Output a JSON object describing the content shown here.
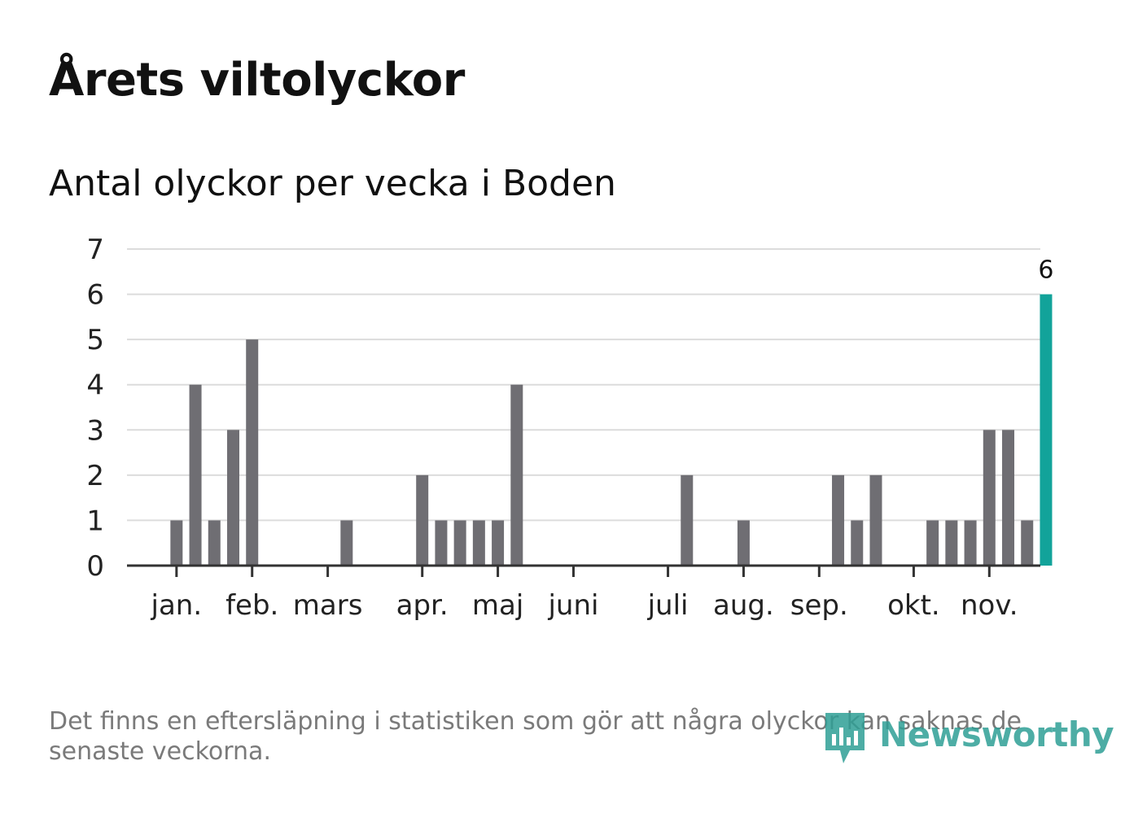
{
  "title": "Årets viltolyckor",
  "subtitle": "Antal olyckor per vecka i Boden",
  "footnote": "Det finns en eftersläpning i statistiken som gör att några olyckor kan saknas de senaste veckorna.",
  "logo_text": "Newsworthy",
  "colors": {
    "bar": "#6f6e73",
    "highlight": "#12a39a",
    "grid": "#dcdcdc",
    "axis": "#333333",
    "logo": "#2f9f96"
  },
  "chart_data": {
    "type": "bar",
    "title": "Antal olyckor per vecka i Boden",
    "xlabel": "",
    "ylabel": "",
    "ylim": [
      0,
      7
    ],
    "yticks": [
      0,
      1,
      2,
      3,
      4,
      5,
      6,
      7
    ],
    "grid": true,
    "weeks": [
      1,
      2,
      3,
      4,
      5,
      6,
      7,
      8,
      9,
      10,
      11,
      12,
      13,
      14,
      15,
      16,
      17,
      18,
      19,
      20,
      21,
      22,
      23,
      24,
      25,
      26,
      27,
      28,
      29,
      30,
      31,
      32,
      33,
      34,
      35,
      36,
      37,
      38,
      39,
      40,
      41,
      42,
      43,
      44,
      45,
      46,
      47,
      48
    ],
    "values": [
      0,
      0,
      1,
      4,
      1,
      3,
      5,
      0,
      0,
      0,
      0,
      1,
      0,
      0,
      0,
      2,
      1,
      1,
      1,
      1,
      4,
      0,
      0,
      0,
      0,
      0,
      0,
      0,
      0,
      2,
      0,
      0,
      1,
      0,
      0,
      0,
      0,
      2,
      1,
      2,
      0,
      0,
      1,
      1,
      1,
      3,
      3,
      1
    ],
    "latest": {
      "week": 49,
      "value": 6,
      "label": "6"
    },
    "months": [
      {
        "label": "jan.",
        "week": 3
      },
      {
        "label": "feb.",
        "week": 7
      },
      {
        "label": "mars",
        "week": 11
      },
      {
        "label": "apr.",
        "week": 16
      },
      {
        "label": "maj",
        "week": 20
      },
      {
        "label": "juni",
        "week": 24
      },
      {
        "label": "juli",
        "week": 29
      },
      {
        "label": "aug.",
        "week": 33
      },
      {
        "label": "sep.",
        "week": 37
      },
      {
        "label": "okt.",
        "week": 42
      },
      {
        "label": "nov.",
        "week": 46
      }
    ]
  }
}
